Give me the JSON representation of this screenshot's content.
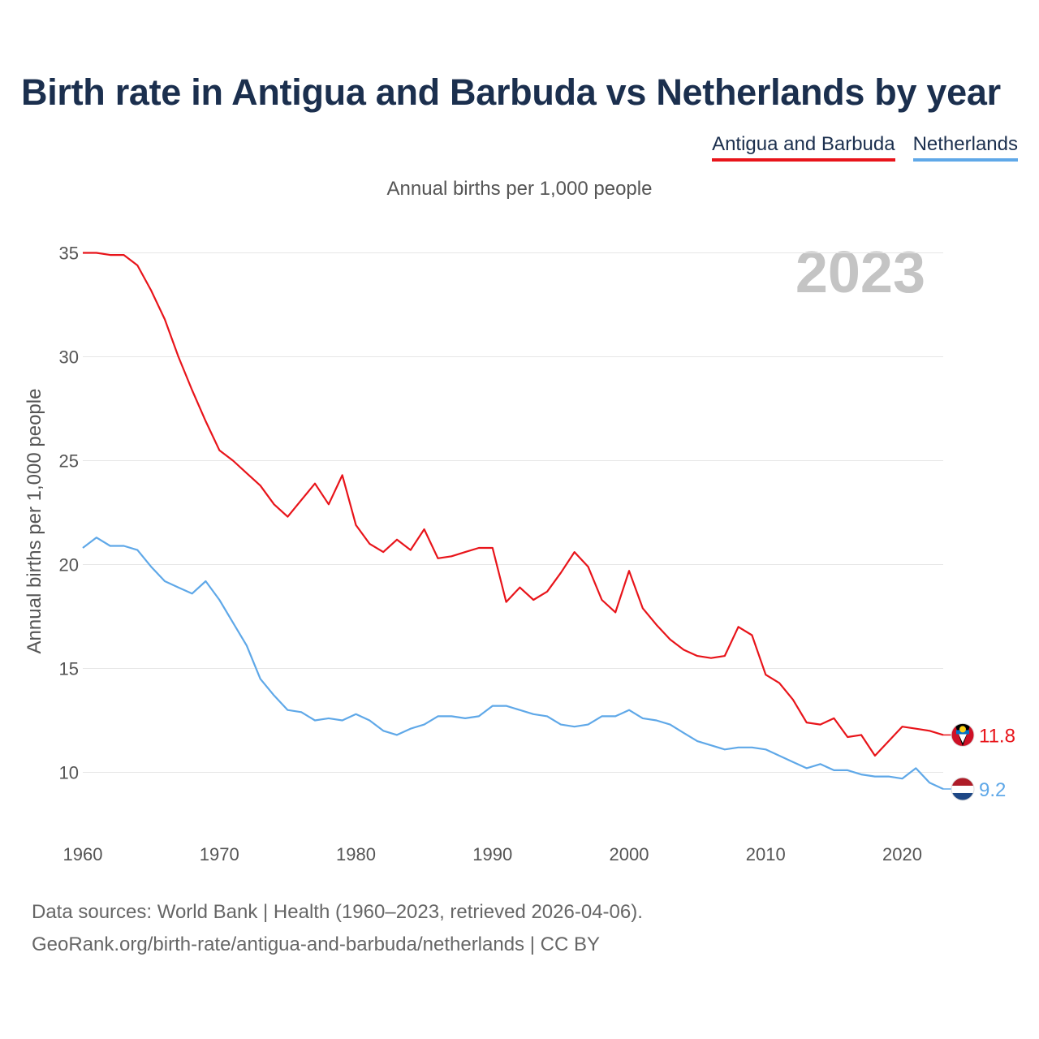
{
  "chart_data": {
    "type": "line",
    "title": "Birth rate in Antigua and Barbuda vs Netherlands by year",
    "subtitle": "Annual births per 1,000 people",
    "ylabel": "Annual births per 1,000 people",
    "xlabel": "",
    "year_badge": "2023",
    "xlim": [
      1960,
      2023
    ],
    "ylim": [
      7.5,
      36.5
    ],
    "x_ticks": [
      1960,
      1970,
      1980,
      1990,
      2000,
      2010,
      2020
    ],
    "y_ticks": [
      10,
      15,
      20,
      25,
      30,
      35
    ],
    "grid": true,
    "legend_position": "top-right",
    "x": [
      1960,
      1961,
      1962,
      1963,
      1964,
      1965,
      1966,
      1967,
      1968,
      1969,
      1970,
      1971,
      1972,
      1973,
      1974,
      1975,
      1976,
      1977,
      1978,
      1979,
      1980,
      1981,
      1982,
      1983,
      1984,
      1985,
      1986,
      1987,
      1988,
      1989,
      1990,
      1991,
      1992,
      1993,
      1994,
      1995,
      1996,
      1997,
      1998,
      1999,
      2000,
      2001,
      2002,
      2003,
      2004,
      2005,
      2006,
      2007,
      2008,
      2009,
      2010,
      2011,
      2012,
      2013,
      2014,
      2015,
      2016,
      2017,
      2018,
      2019,
      2020,
      2021,
      2022,
      2023
    ],
    "series": [
      {
        "name": "Antigua and Barbuda",
        "color": "#e8141a",
        "end_label": "11.8",
        "values": [
          35.0,
          35.0,
          34.9,
          34.9,
          34.4,
          33.2,
          31.8,
          30.0,
          28.4,
          26.9,
          25.5,
          25.0,
          24.4,
          23.8,
          22.9,
          22.3,
          23.1,
          23.9,
          22.9,
          24.3,
          21.9,
          21.0,
          20.6,
          21.2,
          20.7,
          21.7,
          20.3,
          20.4,
          20.6,
          20.8,
          20.8,
          18.2,
          18.9,
          18.3,
          18.7,
          19.6,
          20.6,
          19.9,
          18.3,
          17.7,
          19.7,
          17.9,
          17.1,
          16.4,
          15.9,
          15.6,
          15.5,
          15.6,
          17.0,
          16.6,
          14.7,
          14.3,
          13.5,
          12.4,
          12.3,
          12.6,
          11.7,
          11.8,
          10.8,
          11.5,
          12.2,
          12.1,
          12.0,
          11.8
        ]
      },
      {
        "name": "Netherlands",
        "color": "#5fa8e8",
        "end_label": "9.2",
        "values": [
          20.8,
          21.3,
          20.9,
          20.9,
          20.7,
          19.9,
          19.2,
          18.9,
          18.6,
          19.2,
          18.3,
          17.2,
          16.1,
          14.5,
          13.7,
          13.0,
          12.9,
          12.5,
          12.6,
          12.5,
          12.8,
          12.5,
          12.0,
          11.8,
          12.1,
          12.3,
          12.7,
          12.7,
          12.6,
          12.7,
          13.2,
          13.2,
          13.0,
          12.8,
          12.7,
          12.3,
          12.2,
          12.3,
          12.7,
          12.7,
          13.0,
          12.6,
          12.5,
          12.3,
          11.9,
          11.5,
          11.3,
          11.1,
          11.2,
          11.2,
          11.1,
          10.8,
          10.5,
          10.2,
          10.4,
          10.1,
          10.1,
          9.9,
          9.8,
          9.8,
          9.7,
          10.2,
          9.5,
          9.2
        ]
      }
    ]
  },
  "footer": {
    "line1": "Data sources: World Bank | Health (1960–2023, retrieved 2026-04-06).",
    "line2": "GeoRank.org/birth-rate/antigua-and-barbuda/netherlands | CC BY"
  }
}
